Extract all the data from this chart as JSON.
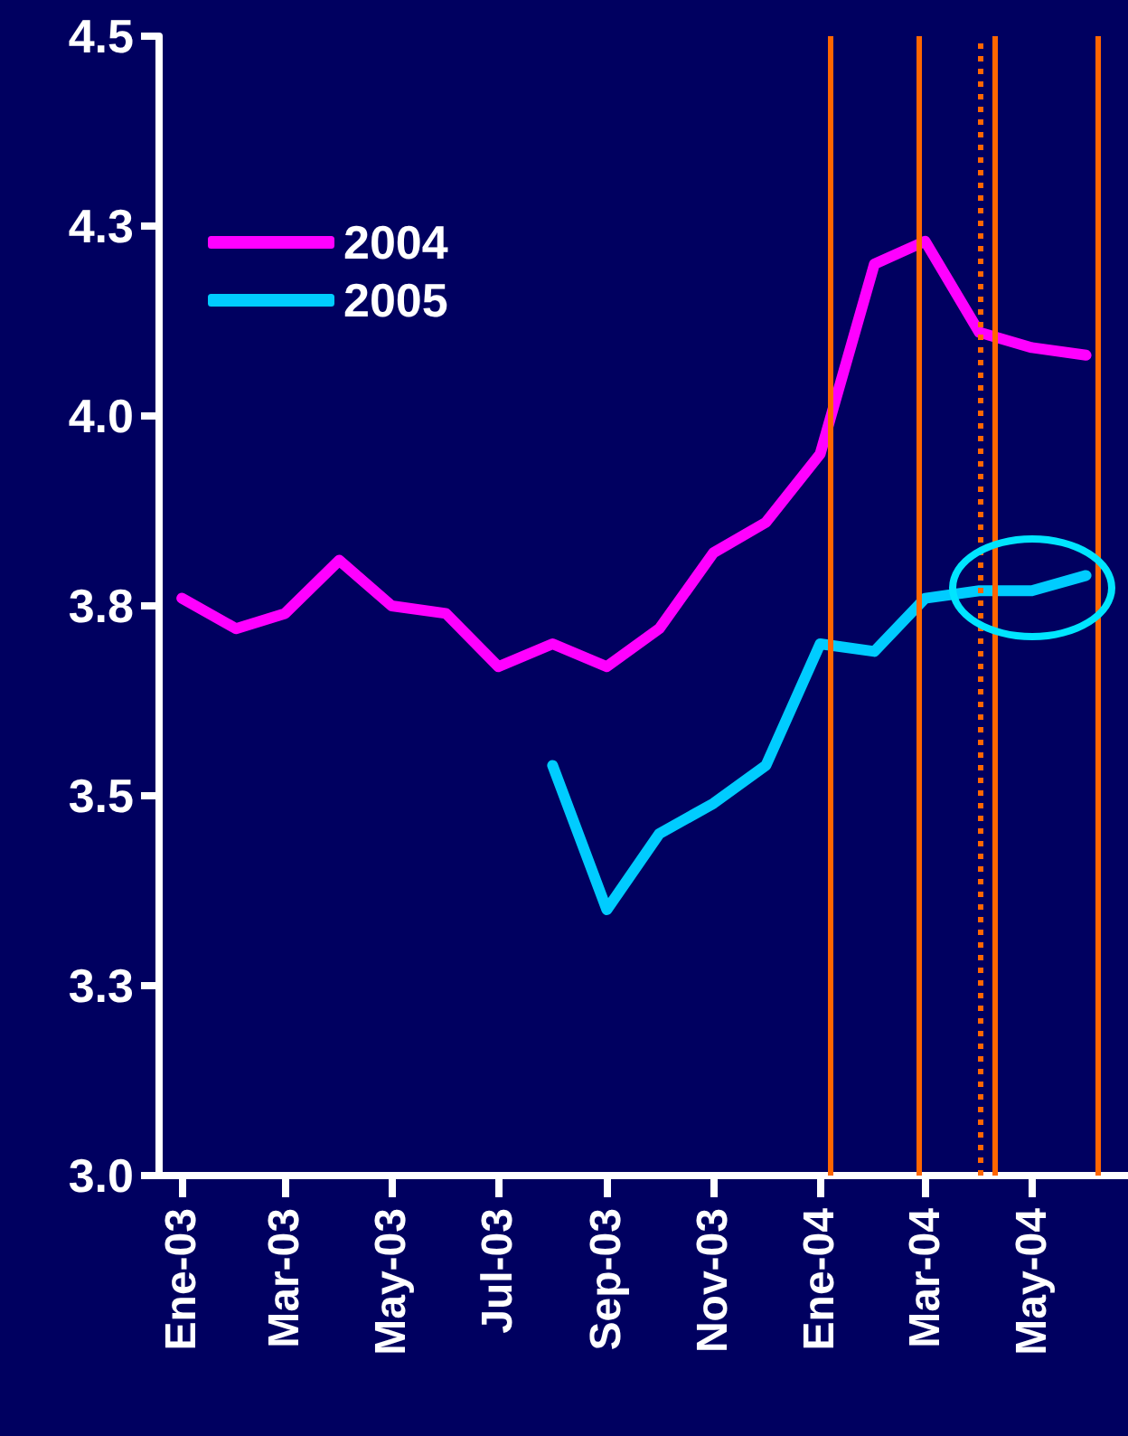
{
  "chart_data": {
    "type": "line",
    "x": [
      "2003-01",
      "2003-02",
      "2003-03",
      "2003-04",
      "2003-05",
      "2003-06",
      "2003-07",
      "2003-08",
      "2003-09",
      "2003-10",
      "2003-11",
      "2003-12",
      "2004-01",
      "2004-02",
      "2004-03",
      "2004-04",
      "2004-05",
      "2004-06"
    ],
    "series": [
      {
        "name": "2004",
        "color": "#ff00ff",
        "values": [
          3.76,
          3.72,
          3.74,
          3.81,
          3.75,
          3.74,
          3.67,
          3.7,
          3.67,
          3.72,
          3.82,
          3.86,
          3.95,
          4.2,
          4.23,
          4.11,
          4.09,
          4.08
        ]
      },
      {
        "name": "2005",
        "color": "#00ccff",
        "values": [
          null,
          null,
          null,
          null,
          null,
          null,
          null,
          3.54,
          3.35,
          3.45,
          3.49,
          3.54,
          3.7,
          3.69,
          3.76,
          3.77,
          3.77,
          3.79
        ]
      }
    ],
    "xlim": [
      "2002-12-19",
      "2004-06-25"
    ],
    "xticks": [
      {
        "value": "2003-01",
        "label": "Ene-03"
      },
      {
        "value": "2003-03",
        "label": "Mar-03"
      },
      {
        "value": "2003-05",
        "label": "May-03"
      },
      {
        "value": "2003-07",
        "label": "Jul-03"
      },
      {
        "value": "2003-09",
        "label": "Sep-03"
      },
      {
        "value": "2003-11",
        "label": "Nov-03"
      },
      {
        "value": "2004-01",
        "label": "Ene-04"
      },
      {
        "value": "2004-03",
        "label": "Mar-04"
      },
      {
        "value": "2004-05",
        "label": "May-04"
      }
    ],
    "ylim": [
      3.0,
      4.5
    ],
    "yticks": [
      {
        "value": 3.0,
        "label": "3.0"
      },
      {
        "value": 3.25,
        "label": "3.3"
      },
      {
        "value": 3.5,
        "label": "3.5"
      },
      {
        "value": 3.75,
        "label": "3.8"
      },
      {
        "value": 4.0,
        "label": "4.0"
      },
      {
        "value": 4.25,
        "label": "4.3"
      },
      {
        "value": 4.5,
        "label": "4.5"
      }
    ],
    "ref_lines": [
      {
        "axis": "x",
        "value": "2004-01-07",
        "color": "#ff6600",
        "line_style": "solid"
      },
      {
        "axis": "x",
        "value": "2004-02-26",
        "color": "#ff6600",
        "line_style": "solid"
      },
      {
        "axis": "x",
        "value": "2004-04-01",
        "color": "#ff6600",
        "line_style": "dotted"
      },
      {
        "axis": "x",
        "value": "2004-04-10",
        "color": "#ff6600",
        "line_style": "solid"
      },
      {
        "axis": "x",
        "value": "2004-06-08",
        "color": "#ff6600",
        "line_style": "solid"
      }
    ],
    "legend": "top left",
    "marker": "none",
    "line_style": "solid"
  }
}
